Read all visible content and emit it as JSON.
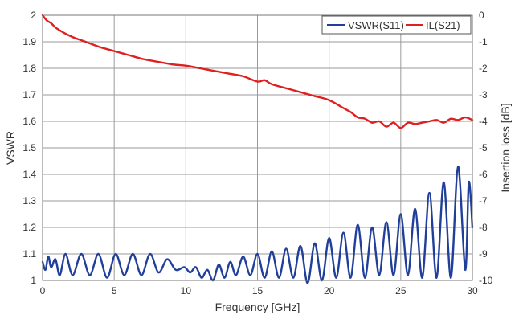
{
  "chart_data": {
    "type": "line",
    "xlabel": "Frequency [GHz]",
    "ylabel": "VSWR",
    "y2label": "Insertion loss [dB]",
    "xlim": [
      0,
      30
    ],
    "ylim": [
      1,
      2
    ],
    "y2lim": [
      -10,
      0
    ],
    "xticks": [
      "0",
      "5",
      "10",
      "15",
      "20",
      "25",
      "30"
    ],
    "yticks": [
      "1",
      "1.1",
      "1.2",
      "1.3",
      "1.4",
      "1.5",
      "1.6",
      "1.7",
      "1.8",
      "1.9",
      "2"
    ],
    "y2ticks": [
      "-10",
      "-9",
      "-8",
      "-7",
      "-6",
      "-5",
      "-4",
      "-3",
      "-2",
      "-1",
      "0"
    ],
    "grid": true,
    "legend_position": "top-right",
    "series": [
      {
        "name": "VSWR(S11)",
        "axis": "left",
        "color": "#1f3f9a",
        "x": [
          0,
          0.2,
          0.4,
          0.6,
          0.9,
          1.2,
          1.6,
          2.1,
          2.7,
          3.3,
          3.9,
          4.5,
          5.1,
          5.7,
          6.3,
          6.9,
          7.5,
          8.1,
          8.7,
          9.3,
          9.9,
          10.3,
          10.7,
          11.1,
          11.5,
          11.9,
          12.3,
          12.7,
          13.1,
          13.5,
          14.0,
          14.5,
          15.0,
          15.5,
          16.0,
          16.5,
          17.0,
          17.5,
          18.0,
          18.5,
          19.0,
          19.5,
          20.0,
          20.5,
          21.0,
          21.5,
          22.0,
          22.5,
          23.0,
          23.5,
          24.0,
          24.5,
          25.0,
          25.5,
          26.0,
          26.5,
          27.0,
          27.5,
          28.0,
          28.5,
          29.0,
          29.5,
          29.75,
          30.0
        ],
        "y": [
          1.07,
          1.04,
          1.09,
          1.05,
          1.08,
          1.02,
          1.1,
          1.02,
          1.1,
          1.02,
          1.1,
          1.01,
          1.1,
          1.02,
          1.1,
          1.02,
          1.1,
          1.03,
          1.08,
          1.04,
          1.05,
          1.03,
          1.05,
          1.01,
          1.04,
          1.0,
          1.06,
          1.01,
          1.07,
          1.02,
          1.09,
          1.02,
          1.1,
          1.01,
          1.11,
          1.01,
          1.12,
          1.01,
          1.13,
          0.99,
          1.14,
          1.0,
          1.16,
          1.01,
          1.18,
          1.01,
          1.21,
          1.01,
          1.2,
          1.02,
          1.22,
          1.02,
          1.25,
          1.02,
          1.27,
          1.01,
          1.33,
          1.01,
          1.37,
          1.01,
          1.43,
          1.04,
          1.37,
          1.2
        ]
      },
      {
        "name": "IL(S21)",
        "axis": "right",
        "color": "#e02020",
        "x": [
          0,
          0.3,
          0.6,
          1,
          2,
          3,
          4,
          5,
          6,
          7,
          8,
          9,
          10,
          11,
          12,
          13,
          14,
          15,
          15.5,
          16,
          17,
          18,
          19,
          20,
          21,
          21.5,
          22,
          22.5,
          23,
          23.5,
          24,
          24.5,
          25,
          25.5,
          26,
          26.5,
          27,
          27.5,
          28,
          28.5,
          29,
          29.5,
          30
        ],
        "y": [
          0,
          -0.2,
          -0.3,
          -0.5,
          -0.8,
          -1.0,
          -1.2,
          -1.35,
          -1.5,
          -1.65,
          -1.75,
          -1.85,
          -1.9,
          -2.0,
          -2.1,
          -2.2,
          -2.3,
          -2.5,
          -2.45,
          -2.6,
          -2.75,
          -2.9,
          -3.05,
          -3.2,
          -3.5,
          -3.65,
          -3.85,
          -3.9,
          -4.05,
          -4.0,
          -4.2,
          -4.05,
          -4.25,
          -4.05,
          -4.1,
          -4.05,
          -4.0,
          -3.95,
          -4.05,
          -3.9,
          -3.95,
          -3.85,
          -3.95
        ]
      }
    ]
  }
}
